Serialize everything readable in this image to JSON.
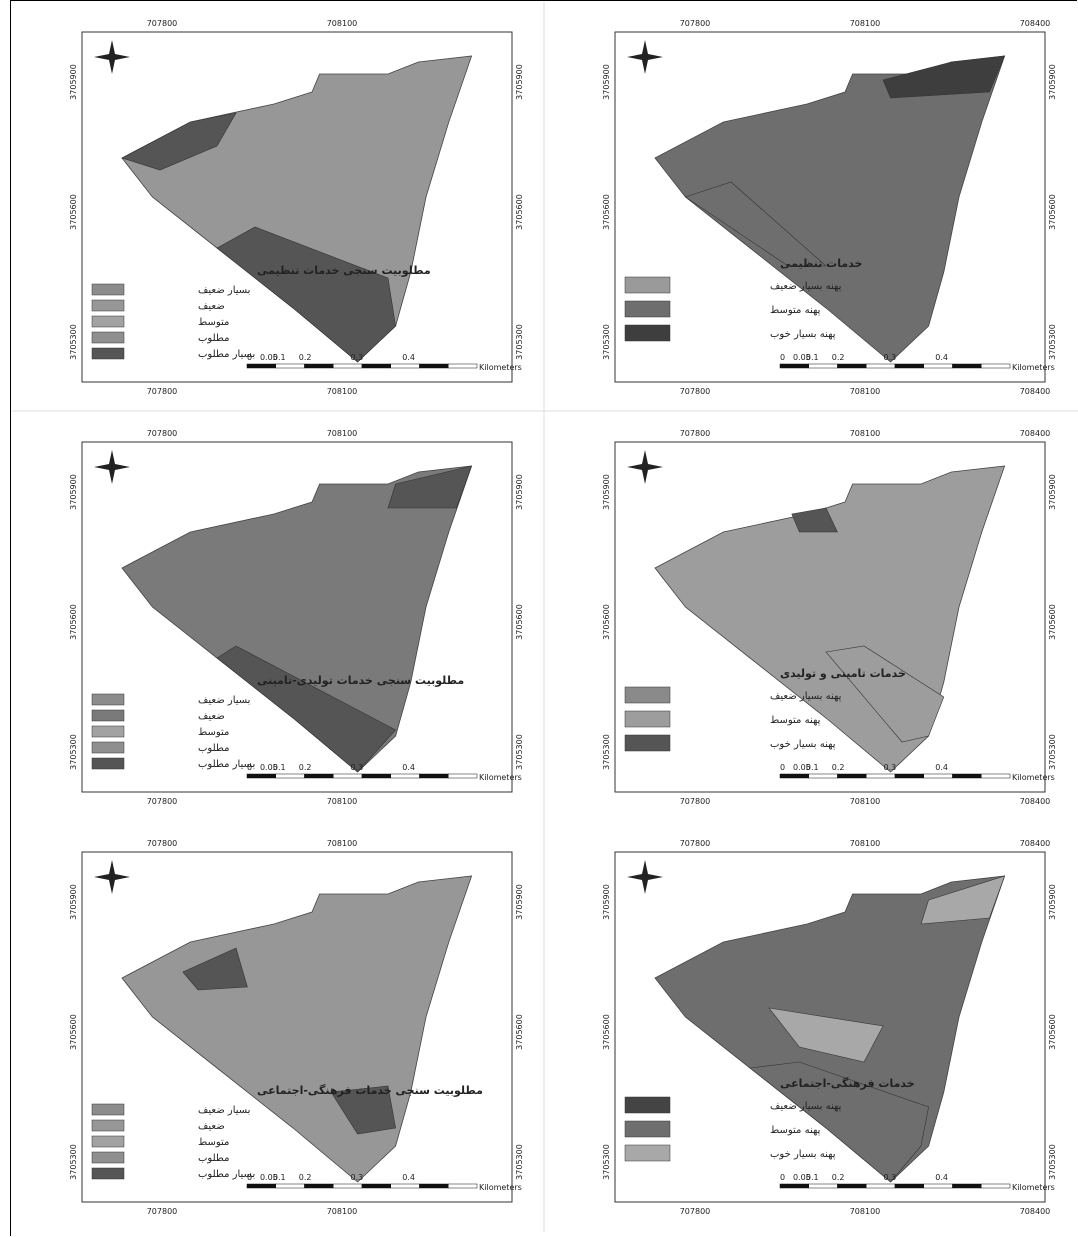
{
  "panels": [
    {
      "legend_title": "مطلوبیت سنجی خدمات تنظیمی",
      "legend": [
        {
          "label": "بسیار ضعیف",
          "color": "#8c8c8c"
        },
        {
          "label": "ضعیف",
          "color": "#979797"
        },
        {
          "label": "متوسط",
          "color": "#a2a2a2"
        },
        {
          "label": "مطلوب",
          "color": "#8f8f8f"
        },
        {
          "label": "بسیار مطلوب",
          "color": "#555555"
        }
      ],
      "x_labels": [
        "707800",
        "708100"
      ],
      "y_labels": [
        "3705900",
        "3705600",
        "3705300"
      ],
      "scale_labels": [
        "0",
        "0.05",
        "0.1",
        "0.2",
        "0.3",
        "0.4",
        "Kilometers"
      ]
    },
    {
      "legend_title": "خدمات تنظیمی",
      "legend": [
        {
          "label": "پهنه بسیار ضعیف",
          "color": "#9a9a9a"
        },
        {
          "label": "پهنه متوسط",
          "color": "#6e6e6e"
        },
        {
          "label": "پهنه بسیار خوب",
          "color": "#3e3e3e"
        }
      ],
      "x_labels": [
        "707800",
        "708100",
        "708400"
      ],
      "y_labels": [
        "3705900",
        "3705600",
        "3705300"
      ],
      "scale_labels": [
        "0",
        "0.05",
        "0.1",
        "0.2",
        "0.3",
        "0.4",
        "Kilometers"
      ]
    },
    {
      "legend_title": "مطلوبیت سنجی خدمات تولیدی-تامینی",
      "legend": [
        {
          "label": "بسیار ضعیف",
          "color": "#8c8c8c"
        },
        {
          "label": "ضعیف",
          "color": "#7a7a7a"
        },
        {
          "label": "متوسط",
          "color": "#a2a2a2"
        },
        {
          "label": "مطلوب",
          "color": "#8f8f8f"
        },
        {
          "label": "بسیار مطلوب",
          "color": "#555555"
        }
      ],
      "x_labels": [
        "707800",
        "708100"
      ],
      "y_labels": [
        "3705900",
        "3705600",
        "3705300"
      ],
      "scale_labels": [
        "0",
        "0.05",
        "0.1",
        "0.2",
        "0.3",
        "0.4",
        "Kilometers"
      ]
    },
    {
      "legend_title": "خدمات تامینی و تولیدی",
      "legend": [
        {
          "label": "پهنه بسیار ضعیف",
          "color": "#8a8a8a"
        },
        {
          "label": "پهنه متوسط",
          "color": "#9d9d9d"
        },
        {
          "label": "پهنه بسیار خوب",
          "color": "#555555"
        }
      ],
      "x_labels": [
        "707800",
        "708100",
        "708400"
      ],
      "y_labels": [
        "3705900",
        "3705600",
        "3705300"
      ],
      "scale_labels": [
        "0",
        "0.05",
        "0.1",
        "0.2",
        "0.3",
        "0.4",
        "Kilometers"
      ]
    },
    {
      "legend_title": "مطلوبیت سنجی خدمات فرهنگی-اجتماعی",
      "legend": [
        {
          "label": "بسیار ضعیف",
          "color": "#8c8c8c"
        },
        {
          "label": "ضعیف",
          "color": "#979797"
        },
        {
          "label": "متوسط",
          "color": "#a2a2a2"
        },
        {
          "label": "مطلوب",
          "color": "#8f8f8f"
        },
        {
          "label": "بسیار مطلوب",
          "color": "#555555"
        }
      ],
      "x_labels": [
        "707800",
        "708100"
      ],
      "y_labels": [
        "3705900",
        "3705600",
        "3705300"
      ],
      "scale_labels": [
        "0",
        "0.05",
        "0.1",
        "0.2",
        "0.3",
        "0.4",
        "Kilometers"
      ]
    },
    {
      "legend_title": "خدمات فرهنگی-اجتماعی",
      "legend": [
        {
          "label": "پهنه بسیار ضعیف",
          "color": "#444444"
        },
        {
          "label": "پهنه متوسط",
          "color": "#6e6e6e"
        },
        {
          "label": "پهنه بسیار خوب",
          "color": "#a8a8a8"
        }
      ],
      "x_labels": [
        "707800",
        "708100",
        "708400"
      ],
      "y_labels": [
        "3705900",
        "3705600",
        "3705300"
      ],
      "scale_labels": [
        "0",
        "0.05",
        "0.1",
        "0.2",
        "0.3",
        "0.4",
        "Kilometers"
      ]
    }
  ]
}
